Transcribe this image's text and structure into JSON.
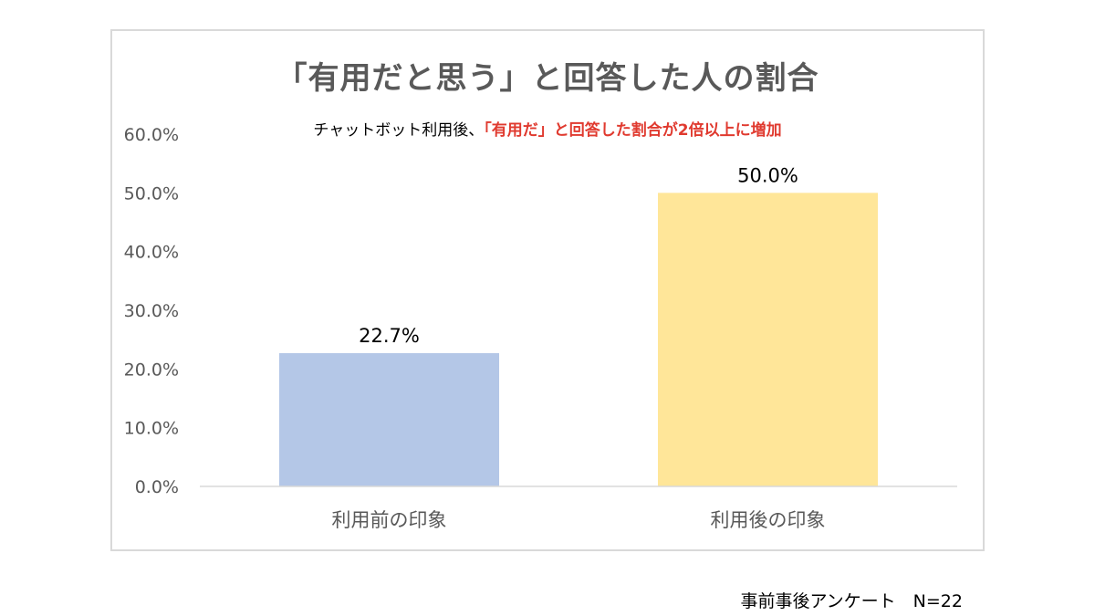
{
  "chart_data": {
    "type": "bar",
    "title": "「有用だと思う」と回答した人の割合",
    "subtitle": {
      "plain": "チャットボット利用後、",
      "highlight": "「有用だ」と回答した割合が2倍以上に増加"
    },
    "categories": [
      "利用前の印象",
      "利用後の印象"
    ],
    "values": [
      22.7,
      50.0
    ],
    "value_labels": [
      "22.7%",
      "50.0%"
    ],
    "bar_colors": [
      "#b4c7e7",
      "#ffe699"
    ],
    "ylim": [
      0,
      60
    ],
    "yticks": [
      0,
      10,
      20,
      30,
      40,
      50,
      60
    ],
    "ytick_labels": [
      "0.0%",
      "10.0%",
      "20.0%",
      "30.0%",
      "40.0%",
      "50.0%",
      "60.0%"
    ],
    "grid": false,
    "legend": "none"
  },
  "footnote": "事前事後アンケート　N=22"
}
